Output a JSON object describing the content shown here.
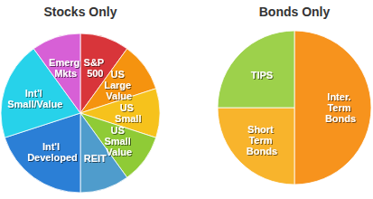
{
  "chart_data": [
    {
      "type": "pie",
      "title": "Stocks Only",
      "categories": [
        "S&P 500",
        "US Large Value",
        "US Small",
        "US Small Value",
        "REIT",
        "Int'l Developed",
        "Int'l Small/Value",
        "Emerg Mkts"
      ],
      "values": [
        10,
        10,
        10,
        10,
        10,
        20,
        20,
        10
      ],
      "colors": [
        "#d8353a",
        "#f5930f",
        "#f6c21c",
        "#8fcb36",
        "#4f9ccc",
        "#2b7fd6",
        "#27d2ea",
        "#d760d6"
      ]
    },
    {
      "type": "pie",
      "title": "Bonds Only",
      "categories": [
        "Inter. Term Bonds",
        "Short Term Bonds",
        "TIPS"
      ],
      "values": [
        50,
        25,
        25
      ],
      "colors": [
        "#f7931d",
        "#f8b42c",
        "#9dd14b"
      ]
    }
  ]
}
